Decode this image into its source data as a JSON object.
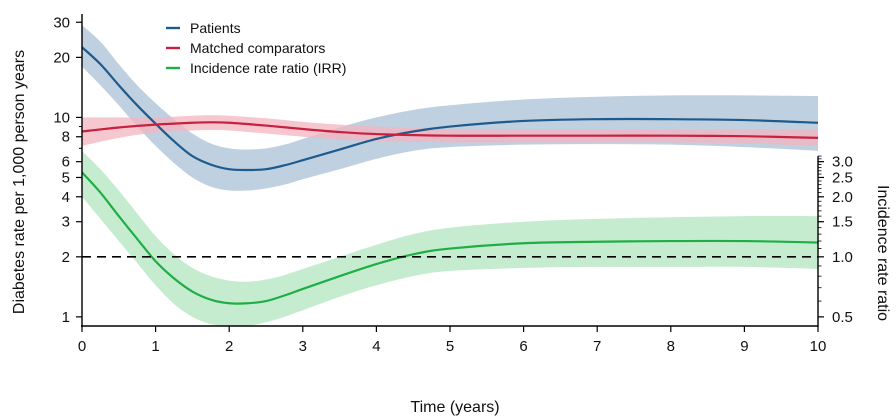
{
  "chart_data": {
    "type": "line",
    "xlabel": "Time (years)",
    "ylabel": "Diabetes rate per 1,000 person years",
    "y2label": "Incidence rate ratio",
    "xlim": [
      0,
      10
    ],
    "ylim": [
      0.9,
      33
    ],
    "yscale": "log",
    "y2lim": [
      0.45,
      16.5
    ],
    "y2scale": "log",
    "x_ticks": [
      0,
      1,
      2,
      3,
      4,
      5,
      6,
      7,
      8,
      9,
      10
    ],
    "y_ticks": [
      1,
      2,
      3,
      4,
      5,
      6,
      8,
      10,
      20,
      30
    ],
    "y2_ticks": [
      0.5,
      1.0,
      1.5,
      2.0,
      2.5,
      3.0
    ],
    "y2_tick_labels": [
      "0.5",
      "1.0",
      "1.5",
      "2.0",
      "2.5",
      "3.0"
    ],
    "reference_line": {
      "axis": "y2",
      "value": 1.0,
      "style": "dashed"
    },
    "legend_position": "top-left",
    "series": [
      {
        "name": "Patients",
        "axis": "y",
        "color": "#1f5a8c",
        "band_color": "#a9c0d6",
        "x": [
          0,
          0.25,
          0.5,
          0.75,
          1,
          1.25,
          1.5,
          1.75,
          2,
          2.25,
          2.5,
          2.75,
          3,
          3.5,
          4,
          4.5,
          5,
          6,
          7,
          8,
          9,
          10
        ],
        "y": [
          22.5,
          18.5,
          14.5,
          11.5,
          9.3,
          7.6,
          6.4,
          5.8,
          5.5,
          5.45,
          5.5,
          5.75,
          6.1,
          6.9,
          7.8,
          8.5,
          9.0,
          9.6,
          9.8,
          9.8,
          9.7,
          9.4
        ],
        "lower": [
          18.0,
          14.5,
          11.5,
          9.0,
          7.2,
          5.9,
          5.0,
          4.5,
          4.3,
          4.3,
          4.4,
          4.6,
          4.9,
          5.5,
          6.2,
          6.8,
          7.1,
          7.3,
          7.35,
          7.3,
          7.1,
          6.8
        ],
        "upper": [
          29.0,
          24.0,
          18.5,
          14.5,
          11.8,
          9.8,
          8.3,
          7.4,
          7.0,
          6.9,
          7.0,
          7.3,
          7.8,
          8.9,
          10.0,
          10.9,
          11.5,
          12.3,
          12.7,
          12.9,
          12.9,
          12.8
        ]
      },
      {
        "name": "Matched comparators",
        "axis": "y",
        "color": "#c8203f",
        "band_color": "#f4b4bf",
        "x": [
          0,
          0.5,
          1,
          1.5,
          1.75,
          2,
          2.5,
          3,
          3.5,
          4,
          5,
          6,
          7,
          8,
          9,
          10
        ],
        "y": [
          8.5,
          8.9,
          9.2,
          9.4,
          9.45,
          9.4,
          9.1,
          8.75,
          8.45,
          8.25,
          8.1,
          8.1,
          8.1,
          8.1,
          8.05,
          7.9
        ],
        "lower": [
          7.2,
          7.9,
          8.4,
          8.6,
          8.65,
          8.6,
          8.3,
          8.0,
          7.75,
          7.6,
          7.5,
          7.5,
          7.5,
          7.5,
          7.4,
          7.2
        ],
        "upper": [
          10.0,
          10.0,
          10.0,
          10.2,
          10.25,
          10.2,
          9.9,
          9.5,
          9.2,
          9.0,
          8.75,
          8.7,
          8.7,
          8.7,
          8.7,
          8.7
        ]
      },
      {
        "name": "Incidence rate ratio (IRR)",
        "axis": "y2",
        "color": "#1fae45",
        "band_color": "#b3e5c0",
        "x": [
          0,
          0.25,
          0.5,
          0.75,
          1,
          1.25,
          1.5,
          1.75,
          2,
          2.25,
          2.5,
          2.75,
          3,
          3.5,
          4,
          4.5,
          5,
          6,
          7,
          8,
          9,
          10
        ],
        "y": [
          2.65,
          2.1,
          1.6,
          1.23,
          0.95,
          0.78,
          0.67,
          0.61,
          0.585,
          0.585,
          0.6,
          0.64,
          0.69,
          0.8,
          0.92,
          1.03,
          1.1,
          1.17,
          1.19,
          1.2,
          1.2,
          1.18
        ],
        "lower": [
          2.0,
          1.55,
          1.2,
          0.93,
          0.72,
          0.58,
          0.5,
          0.46,
          0.45,
          0.45,
          0.47,
          0.5,
          0.54,
          0.63,
          0.72,
          0.8,
          0.85,
          0.88,
          0.89,
          0.89,
          0.89,
          0.87
        ],
        "upper": [
          3.4,
          2.75,
          2.15,
          1.65,
          1.27,
          1.03,
          0.88,
          0.8,
          0.76,
          0.75,
          0.77,
          0.81,
          0.87,
          1.0,
          1.15,
          1.3,
          1.4,
          1.5,
          1.55,
          1.58,
          1.6,
          1.6
        ]
      }
    ]
  }
}
